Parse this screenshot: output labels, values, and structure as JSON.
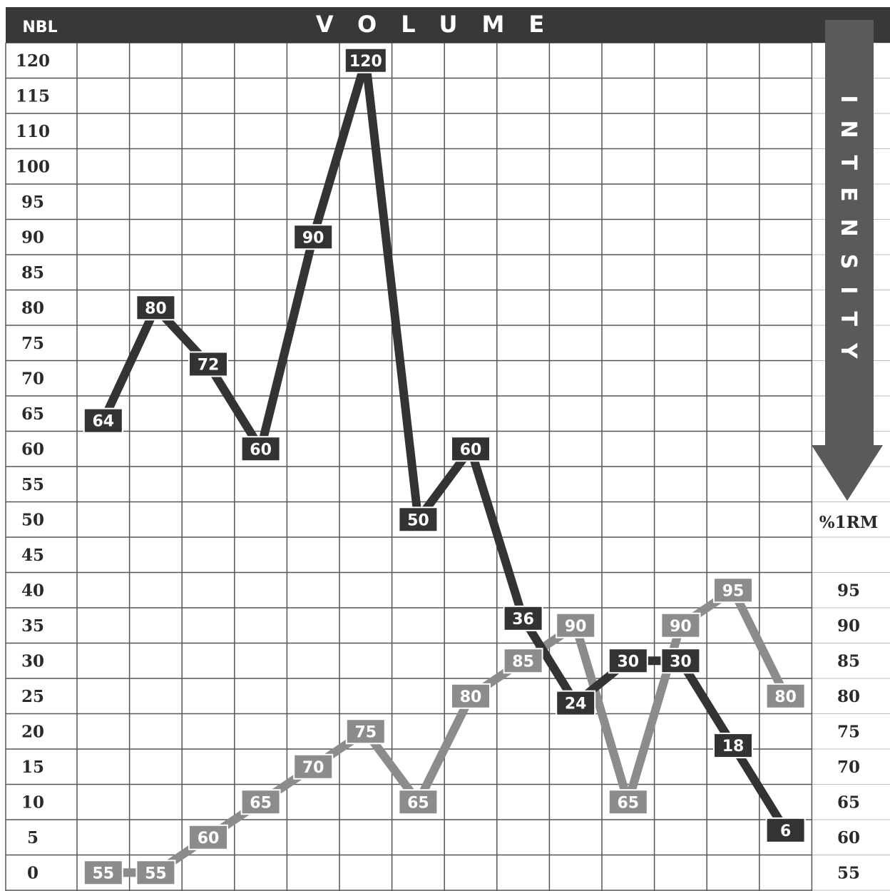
{
  "chart_data": {
    "type": "line",
    "title": "VOLUME",
    "y_axis_label": "NBL",
    "y_ticks": [
      120,
      115,
      110,
      100,
      95,
      90,
      85,
      80,
      75,
      70,
      65,
      60,
      55,
      50,
      45,
      40,
      35,
      30,
      25,
      20,
      15,
      10,
      5,
      0
    ],
    "right_axis_title": "INTENSITY",
    "right_axis_unit": "%1RM",
    "right_ticks": [
      95,
      90,
      85,
      80,
      75,
      70,
      65,
      60,
      55
    ],
    "series": [
      {
        "name": "NBL",
        "color": "#333333",
        "values": [
          64,
          80,
          72,
          60,
          90,
          120,
          50,
          60,
          36,
          24,
          30,
          30,
          18,
          6
        ],
        "labels": [
          "64",
          "80",
          "72",
          "60",
          "90",
          "120",
          "50",
          "60",
          "36",
          "24",
          "30",
          "30",
          "18",
          "6"
        ]
      },
      {
        "name": "%1RM",
        "color": "#8c8c8c",
        "values": [
          55,
          55,
          60,
          65,
          70,
          75,
          65,
          80,
          85,
          90,
          65,
          90,
          95,
          80
        ],
        "labels": [
          "55",
          "55",
          "60",
          "65",
          "70",
          "75",
          "65",
          "80",
          "85",
          "90",
          "65",
          "90",
          "95",
          "80"
        ]
      }
    ],
    "grid": true
  }
}
